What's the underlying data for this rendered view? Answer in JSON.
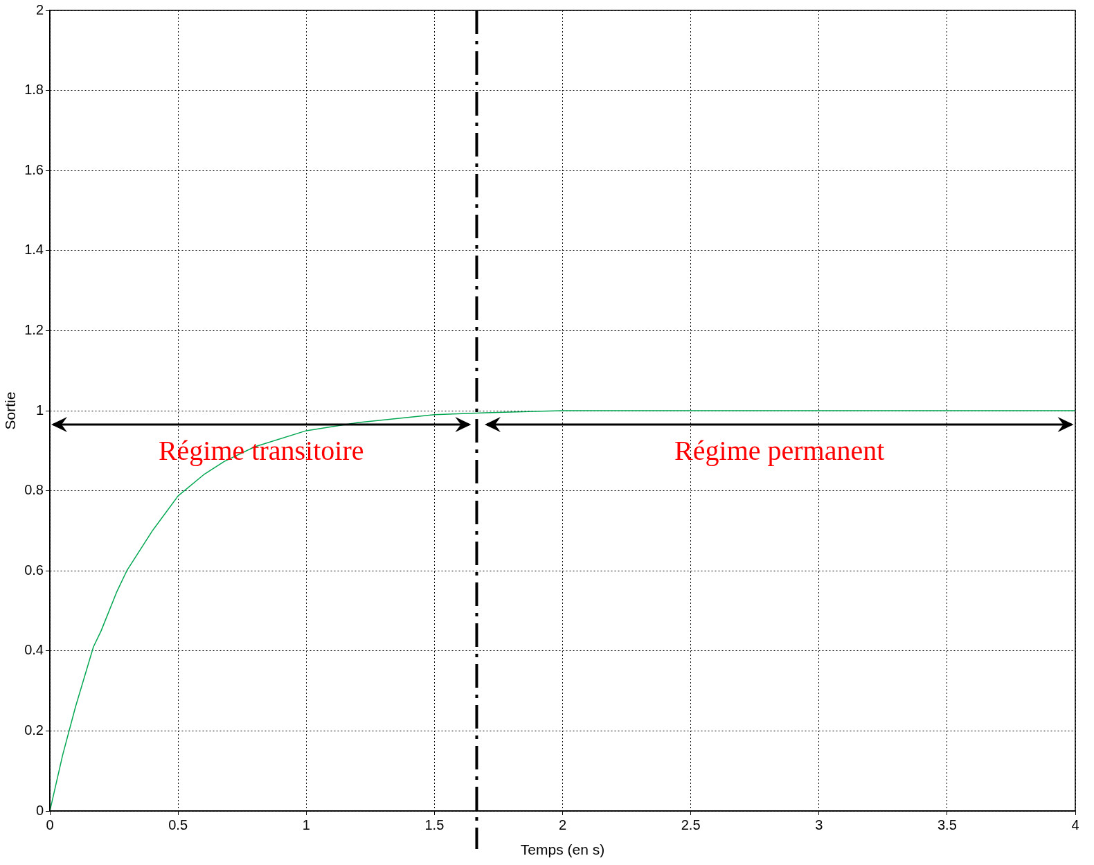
{
  "chart_data": {
    "type": "line",
    "xlabel": "Temps (en s)",
    "ylabel": "Sortie",
    "x": [
      0,
      0.05,
      0.1,
      0.17,
      0.2,
      0.26,
      0.3,
      0.4,
      0.5,
      0.6,
      0.68,
      0.8,
      1,
      1.2,
      1.5,
      1.7,
      2,
      2.5,
      3,
      4
    ],
    "series": [
      {
        "color": "#00a651",
        "values": [
          0,
          0.14,
          0.26,
          0.41,
          0.45,
          0.546,
          0.6,
          0.7,
          0.787,
          0.84,
          0.873,
          0.91,
          0.95,
          0.97,
          0.99,
          0.995,
          1,
          1,
          1,
          1
        ]
      }
    ],
    "xlim": [
      0,
      4
    ],
    "xticks": [
      0,
      0.5,
      1,
      1.5,
      2,
      2.5,
      3,
      3.5,
      4
    ],
    "ylim": [
      0,
      2
    ],
    "yticks": [
      0,
      0.2,
      0.4,
      0.6,
      0.8,
      1,
      1.2,
      1.4,
      1.6,
      1.8,
      2
    ],
    "grid": true,
    "legend": false,
    "marker": "none",
    "line_style": "solid",
    "ref_lines": [
      {
        "axis": "x",
        "value": 1.665,
        "color": "#000000",
        "line_style": "dashed"
      }
    ],
    "annotations": [
      "Régime transitoire",
      "Régime permanent"
    ]
  }
}
